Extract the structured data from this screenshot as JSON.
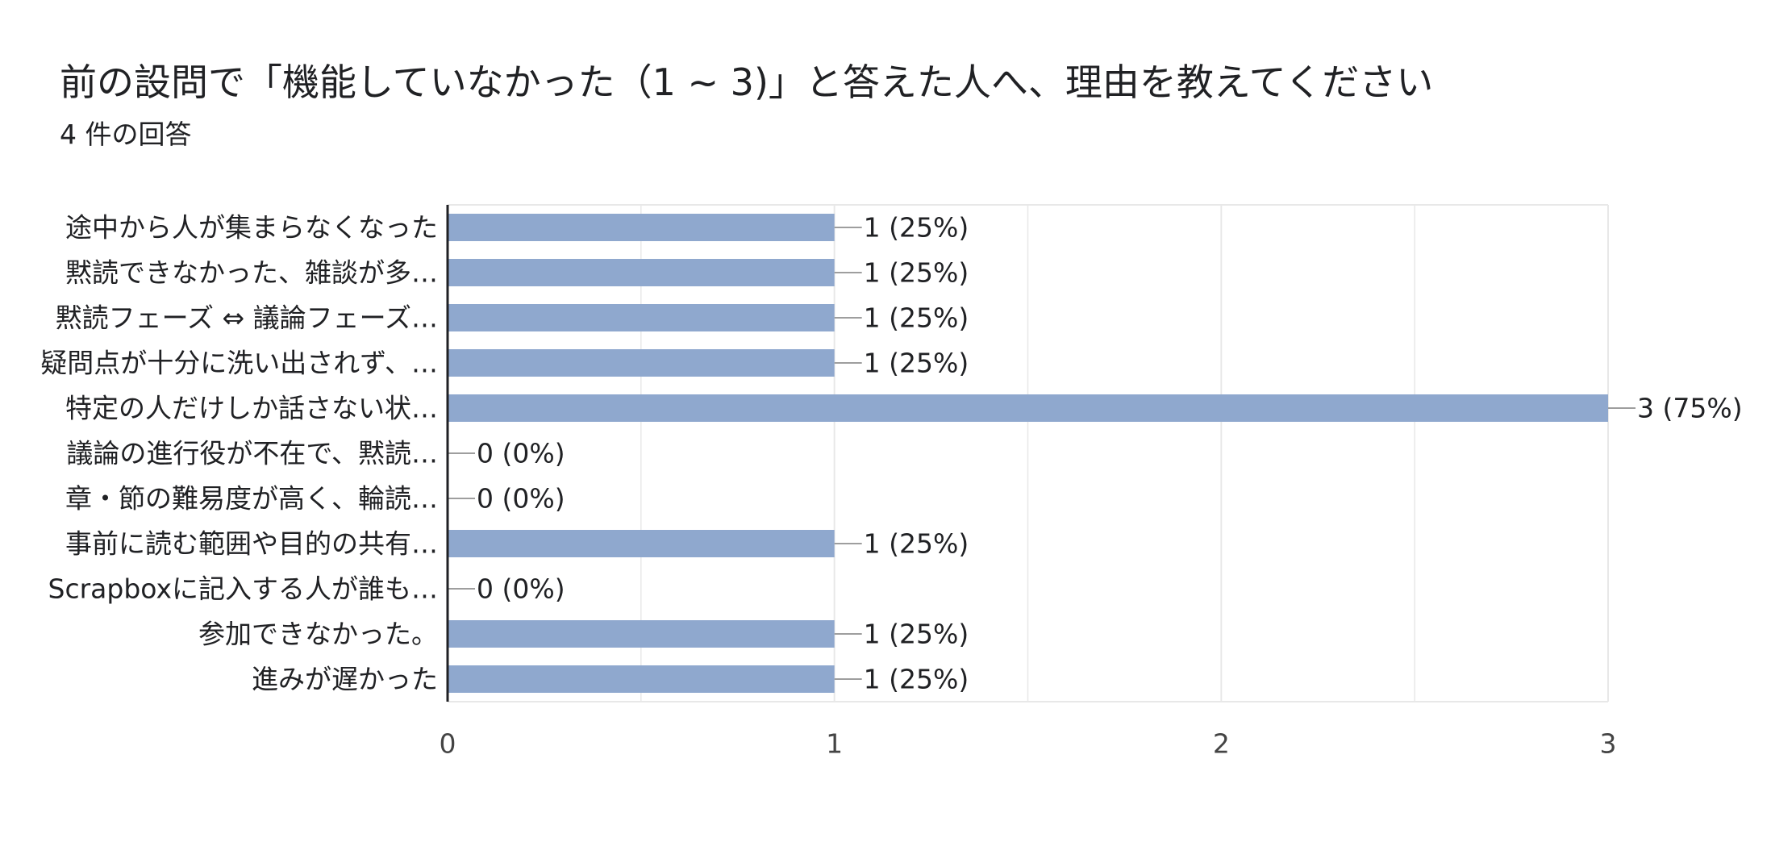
{
  "title": "前の設問で「機能していなかった（1 ~ 3)」と答えた人へ、理由を教えてください",
  "subtitle": "4 件の回答",
  "colors": {
    "bar": "#8fa8ce",
    "grid": "#e8e8e8",
    "axis": "#202124",
    "leader": "#9e9e9e",
    "text": "#202124",
    "tick": "#444444"
  },
  "chart_data": {
    "type": "bar",
    "orientation": "horizontal",
    "categories": [
      "途中から人が集まらなくなった",
      "黙読できなかった、雑談が多…",
      "黙読フェーズ ⇔ 議論フェーズ…",
      "疑問点が十分に洗い出されず、…",
      "特定の人だけしか話さない状…",
      "議論の進行役が不在で、黙読…",
      "章・節の難易度が高く、輪読…",
      "事前に読む範囲や目的の共有…",
      "Scrapboxに記入する人が誰も…",
      "参加できなかった。",
      "進みが遅かった"
    ],
    "values": [
      1,
      1,
      1,
      1,
      3,
      0,
      0,
      1,
      0,
      1,
      1
    ],
    "data_labels": [
      "1 (25%)",
      "1 (25%)",
      "1 (25%)",
      "1 (25%)",
      "3 (75%)",
      "0 (0%)",
      "0 (0%)",
      "1 (25%)",
      "0 (0%)",
      "1 (25%)",
      "1 (25%)"
    ],
    "xlim": [
      0,
      3
    ],
    "xticks": [
      "0",
      "1",
      "2",
      "3"
    ],
    "grid": true
  }
}
